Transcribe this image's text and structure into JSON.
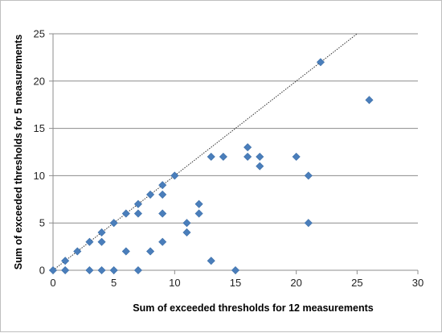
{
  "chart_data": {
    "type": "scatter",
    "title": "",
    "xlabel": "Sum of exceeded thresholds for 12 measurements",
    "ylabel": "Sum of exceeded thresholds  for 5 measurements",
    "xlim": [
      0,
      30
    ],
    "ylim": [
      0,
      25
    ],
    "xticks": [
      "0",
      "5",
      "10",
      "15",
      "20",
      "25",
      "30"
    ],
    "yticks": [
      "0",
      "5",
      "10",
      "15",
      "20",
      "25"
    ],
    "grid": "horizontal",
    "legend": "none",
    "marker": "diamond",
    "marker_color": "#4a7ebb",
    "reference_line": {
      "style": "dotted",
      "color": "#333333",
      "points": [
        [
          0,
          0
        ],
        [
          25,
          25
        ]
      ]
    },
    "series": [
      {
        "points": [
          [
            0,
            0
          ],
          [
            1,
            1
          ],
          [
            1,
            0
          ],
          [
            2,
            2
          ],
          [
            3,
            3
          ],
          [
            3,
            0
          ],
          [
            4,
            4
          ],
          [
            4,
            3
          ],
          [
            4,
            0
          ],
          [
            5,
            5
          ],
          [
            5,
            0
          ],
          [
            6,
            6
          ],
          [
            6,
            2
          ],
          [
            7,
            7
          ],
          [
            7,
            6
          ],
          [
            7,
            0
          ],
          [
            8,
            8
          ],
          [
            8,
            2
          ],
          [
            9,
            9
          ],
          [
            9,
            8
          ],
          [
            9,
            6
          ],
          [
            9,
            3
          ],
          [
            10,
            10
          ],
          [
            11,
            5
          ],
          [
            11,
            4
          ],
          [
            12,
            7
          ],
          [
            12,
            6
          ],
          [
            13,
            12
          ],
          [
            13,
            1
          ],
          [
            14,
            12
          ],
          [
            15,
            0
          ],
          [
            16,
            13
          ],
          [
            16,
            12
          ],
          [
            17,
            12
          ],
          [
            17,
            11
          ],
          [
            20,
            12
          ],
          [
            21,
            10
          ],
          [
            21,
            5
          ],
          [
            22,
            22
          ],
          [
            26,
            18
          ]
        ]
      }
    ]
  }
}
